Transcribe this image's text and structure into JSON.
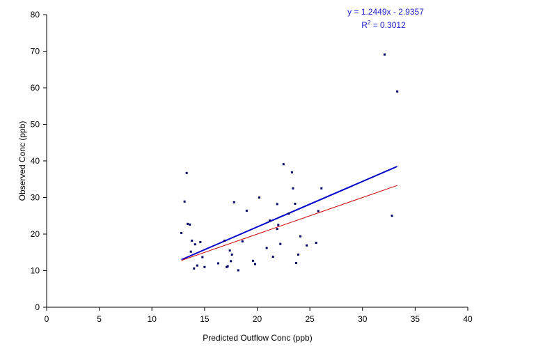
{
  "chart_data": {
    "type": "scatter",
    "xlabel": "Predicted Outflow Conc (ppb)",
    "ylabel": "Observed Conc (ppb)",
    "xlim": [
      0,
      40
    ],
    "ylim": [
      0,
      80
    ],
    "x_ticks": [
      0,
      5,
      10,
      15,
      20,
      25,
      30,
      35,
      40
    ],
    "y_ticks": [
      0,
      10,
      20,
      30,
      40,
      50,
      60,
      70,
      80
    ],
    "grid": false,
    "legend": "none",
    "points_color": "#000066",
    "points": [
      [
        12.8,
        20.3
      ],
      [
        13.1,
        28.9
      ],
      [
        13.3,
        36.7
      ],
      [
        13.4,
        22.8
      ],
      [
        13.6,
        22.6
      ],
      [
        13.7,
        15.2
      ],
      [
        13.8,
        18.2
      ],
      [
        14.0,
        10.6
      ],
      [
        14.1,
        17.2
      ],
      [
        14.3,
        11.4
      ],
      [
        14.6,
        17.8
      ],
      [
        14.8,
        13.7
      ],
      [
        15.0,
        11.0
      ],
      [
        16.3,
        12.0
      ],
      [
        16.9,
        18.2
      ],
      [
        17.1,
        11.0
      ],
      [
        17.2,
        11.2
      ],
      [
        17.4,
        15.5
      ],
      [
        17.5,
        12.6
      ],
      [
        17.6,
        14.4
      ],
      [
        17.8,
        28.7
      ],
      [
        18.2,
        10.1
      ],
      [
        18.6,
        18.0
      ],
      [
        19.0,
        26.4
      ],
      [
        19.6,
        12.7
      ],
      [
        19.8,
        11.8
      ],
      [
        20.2,
        30.0
      ],
      [
        20.9,
        16.2
      ],
      [
        21.2,
        23.7
      ],
      [
        21.5,
        13.8
      ],
      [
        21.9,
        21.4
      ],
      [
        21.9,
        28.2
      ],
      [
        22.0,
        22.5
      ],
      [
        22.2,
        17.3
      ],
      [
        22.5,
        39.1
      ],
      [
        23.0,
        25.6
      ],
      [
        23.3,
        36.9
      ],
      [
        23.4,
        32.5
      ],
      [
        23.6,
        28.3
      ],
      [
        23.7,
        12.1
      ],
      [
        23.9,
        14.4
      ],
      [
        24.1,
        19.4
      ],
      [
        24.7,
        16.9
      ],
      [
        25.6,
        17.6
      ],
      [
        25.8,
        26.3
      ],
      [
        26.1,
        32.5
      ],
      [
        32.1,
        69.1
      ],
      [
        32.8,
        25.0
      ],
      [
        33.3,
        59.0
      ]
    ],
    "series": [
      {
        "name": "",
        "type": "line",
        "color": "#0000cc",
        "x": [
          12.8,
          33.3
        ],
        "y": [
          13.0,
          38.5
        ]
      },
      {
        "name": "",
        "type": "line",
        "color": "#cc0000",
        "x": [
          12.8,
          33.3
        ],
        "y": [
          12.8,
          33.3
        ]
      }
    ],
    "annotation": {
      "equation": "y = 1.2449x - 2.9357",
      "r2_prefix": "R",
      "r2_sup": "2",
      "r2_value": " = 0.3012"
    }
  }
}
